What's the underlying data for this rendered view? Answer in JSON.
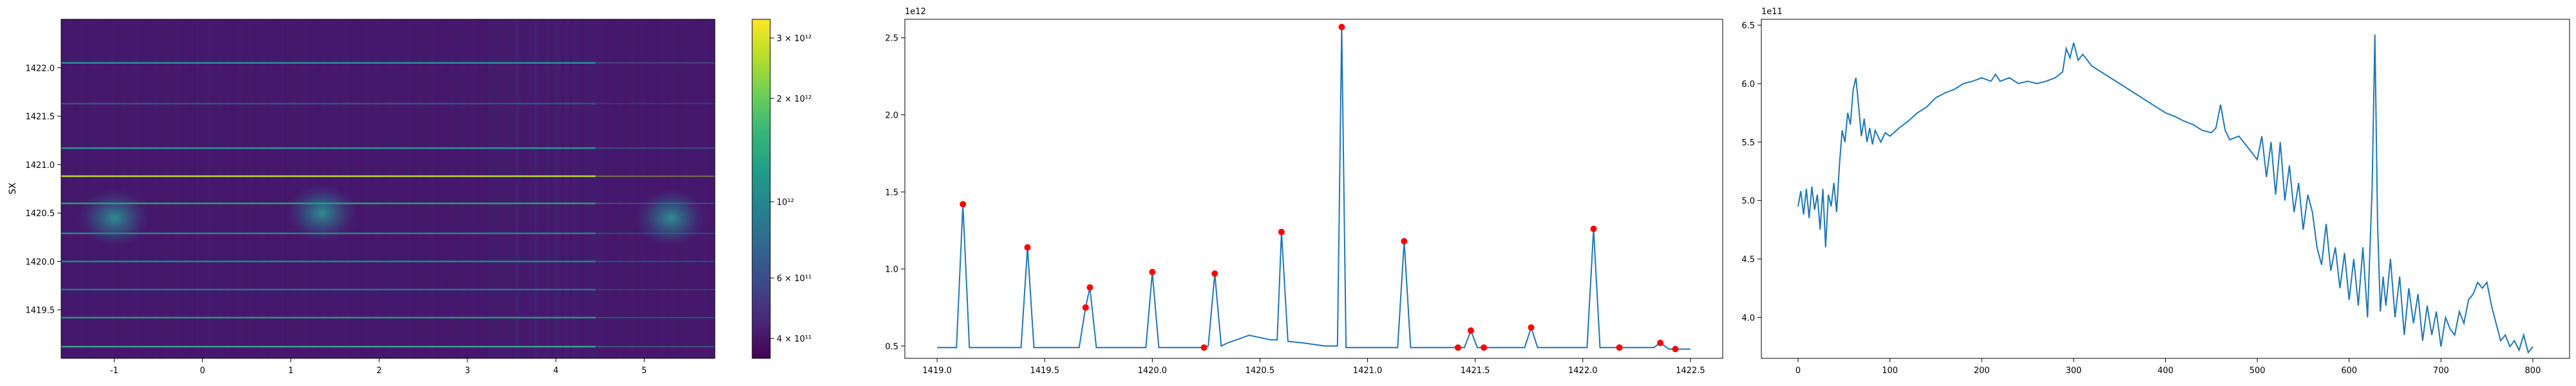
{
  "chart_data": [
    {
      "type": "heatmap",
      "ylabel": "SX",
      "xlim": [
        -1.6,
        5.8
      ],
      "ylim": [
        1419.0,
        1422.5
      ],
      "xticks": [
        "-1",
        "0",
        "1",
        "2",
        "3",
        "4",
        "5"
      ],
      "xtick_values": [
        -1,
        0,
        1,
        2,
        3,
        4,
        5
      ],
      "yticks": [
        "1419.5",
        "1420.0",
        "1420.5",
        "1421.0",
        "1421.5",
        "1422.0"
      ],
      "ytick_values": [
        1419.5,
        1420.0,
        1420.5,
        1421.0,
        1421.5,
        1422.0
      ],
      "colorbar": {
        "scale": "log",
        "range": [
          350000000000.0,
          3400000000000.0
        ],
        "ticks": [
          {
            "label": "4 × 10¹¹",
            "value": 400000000000.0
          },
          {
            "label": "6 × 10¹¹",
            "value": 600000000000.0
          },
          {
            "label": "10¹²",
            "value": 1000000000000.0
          },
          {
            "label": "2 × 10¹²",
            "value": 2000000000000.0
          },
          {
            "label": "3 × 10¹²",
            "value": 3000000000000.0
          }
        ],
        "colormap": [
          "#440154",
          "#482878",
          "#3e4989",
          "#31688e",
          "#26828e",
          "#1f9e89",
          "#35b779",
          "#6ece58",
          "#b5de2b",
          "#fde725"
        ]
      },
      "bright_rows": [
        {
          "y": 1422.05,
          "value": 1150000000000.0
        },
        {
          "y": 1421.63,
          "value": 600000000000.0
        },
        {
          "y": 1421.17,
          "value": 1200000000000.0
        },
        {
          "y": 1420.88,
          "value": 2600000000000.0
        },
        {
          "y": 1420.6,
          "value": 1250000000000.0
        },
        {
          "y": 1420.29,
          "value": 950000000000.0
        },
        {
          "y": 1420.0,
          "value": 980000000000.0
        },
        {
          "y": 1419.71,
          "value": 800000000000.0
        },
        {
          "y": 1419.42,
          "value": 1150000000000.0
        },
        {
          "y": 1419.12,
          "value": 1400000000000.0
        }
      ],
      "blobs": [
        {
          "x": -1.0,
          "y": 1420.45,
          "value": 1100000000000.0
        },
        {
          "x": 1.35,
          "y": 1420.5,
          "value": 1000000000000.0
        },
        {
          "x": 5.3,
          "y": 1420.45,
          "value": 1300000000000.0
        }
      ]
    },
    {
      "type": "line",
      "offset_label": "1e12",
      "xlim": [
        1418.85,
        1422.65
      ],
      "ylim": [
        0.42,
        2.62
      ],
      "xticks": [
        "1419.0",
        "1419.5",
        "1420.0",
        "1420.5",
        "1421.0",
        "1421.5",
        "1422.0",
        "1422.5"
      ],
      "xtick_values": [
        1419.0,
        1419.5,
        1420.0,
        1420.5,
        1421.0,
        1421.5,
        1422.0,
        1422.5
      ],
      "yticks": [
        "0.5",
        "1.0",
        "1.5",
        "2.0",
        "2.5"
      ],
      "ytick_values": [
        0.5,
        1.0,
        1.5,
        2.0,
        2.5
      ],
      "line_color": "#1f77b4",
      "marker_color": "#ff0000",
      "x": [
        1419.0,
        1419.09,
        1419.12,
        1419.15,
        1419.39,
        1419.42,
        1419.45,
        1419.66,
        1419.69,
        1419.71,
        1419.74,
        1419.97,
        1420.0,
        1420.03,
        1420.24,
        1420.26,
        1420.29,
        1420.32,
        1420.35,
        1420.45,
        1420.55,
        1420.58,
        1420.6,
        1420.63,
        1420.7,
        1420.8,
        1420.86,
        1420.88,
        1420.9,
        1421.0,
        1421.14,
        1421.17,
        1421.2,
        1421.42,
        1421.45,
        1421.48,
        1421.51,
        1421.54,
        1421.73,
        1421.76,
        1421.79,
        1421.9,
        1422.02,
        1422.05,
        1422.08,
        1422.2,
        1422.33,
        1422.36,
        1422.4,
        1422.5
      ],
      "y": [
        0.49,
        0.49,
        1.42,
        0.49,
        0.49,
        1.14,
        0.49,
        0.49,
        0.75,
        0.88,
        0.49,
        0.49,
        0.98,
        0.49,
        0.49,
        0.5,
        0.97,
        0.5,
        0.52,
        0.57,
        0.54,
        0.54,
        1.24,
        0.53,
        0.52,
        0.5,
        0.5,
        2.57,
        0.49,
        0.49,
        0.49,
        1.18,
        0.49,
        0.49,
        0.49,
        0.6,
        0.49,
        0.49,
        0.49,
        0.62,
        0.49,
        0.49,
        0.49,
        1.26,
        0.49,
        0.49,
        0.49,
        0.52,
        0.48,
        0.48
      ],
      "peaks_x": [
        1419.12,
        1419.42,
        1419.69,
        1419.71,
        1420.0,
        1420.24,
        1420.29,
        1420.6,
        1420.88,
        1421.17,
        1421.42,
        1421.48,
        1421.54,
        1421.76,
        1422.05,
        1422.17,
        1422.36,
        1422.43
      ],
      "peaks_y": [
        1.42,
        1.14,
        0.75,
        0.88,
        0.98,
        0.49,
        0.97,
        1.24,
        2.57,
        1.18,
        0.49,
        0.6,
        0.49,
        0.62,
        1.26,
        0.49,
        0.52,
        0.48
      ]
    },
    {
      "type": "line",
      "offset_label": "1e11",
      "xlim": [
        -40,
        840
      ],
      "ylim": [
        3.65,
        6.55
      ],
      "xticks": [
        "0",
        "100",
        "200",
        "300",
        "400",
        "500",
        "600",
        "700",
        "800"
      ],
      "xtick_values": [
        0,
        100,
        200,
        300,
        400,
        500,
        600,
        700,
        800
      ],
      "yticks": [
        "4.0",
        "4.5",
        "5.0",
        "5.5",
        "6.0",
        "6.5"
      ],
      "ytick_values": [
        4.0,
        4.5,
        5.0,
        5.5,
        6.0,
        6.5
      ],
      "line_color": "#1f77b4",
      "x": [
        0,
        3,
        6,
        9,
        12,
        15,
        18,
        21,
        24,
        27,
        30,
        33,
        36,
        39,
        42,
        45,
        48,
        51,
        54,
        57,
        60,
        63,
        66,
        69,
        72,
        75,
        78,
        81,
        84,
        87,
        90,
        95,
        100,
        110,
        120,
        130,
        140,
        150,
        160,
        170,
        180,
        190,
        200,
        210,
        215,
        220,
        230,
        240,
        250,
        260,
        270,
        280,
        288,
        292,
        296,
        300,
        305,
        310,
        320,
        330,
        340,
        350,
        360,
        370,
        380,
        390,
        400,
        410,
        420,
        430,
        440,
        450,
        455,
        460,
        465,
        470,
        480,
        490,
        500,
        505,
        510,
        515,
        520,
        525,
        530,
        535,
        540,
        545,
        550,
        555,
        560,
        565,
        570,
        575,
        580,
        585,
        590,
        595,
        600,
        605,
        610,
        615,
        620,
        625,
        628,
        631,
        634,
        637,
        640,
        645,
        650,
        655,
        660,
        665,
        670,
        675,
        680,
        685,
        690,
        695,
        700,
        705,
        710,
        715,
        720,
        725,
        730,
        735,
        740,
        745,
        750,
        755,
        760,
        765,
        770,
        775,
        780,
        785,
        790,
        795,
        800
      ],
      "y": [
        4.95,
        5.08,
        4.88,
        5.1,
        4.85,
        5.12,
        4.92,
        5.05,
        4.75,
        5.1,
        4.6,
        5.05,
        4.95,
        5.15,
        4.9,
        5.3,
        5.6,
        5.5,
        5.75,
        5.65,
        5.95,
        6.05,
        5.8,
        5.55,
        5.7,
        5.5,
        5.62,
        5.48,
        5.6,
        5.55,
        5.5,
        5.58,
        5.55,
        5.62,
        5.68,
        5.75,
        5.8,
        5.88,
        5.92,
        5.95,
        6.0,
        6.02,
        6.05,
        6.02,
        6.08,
        6.02,
        6.05,
        6.0,
        6.02,
        6.0,
        6.02,
        6.05,
        6.1,
        6.3,
        6.22,
        6.35,
        6.2,
        6.25,
        6.15,
        6.1,
        6.05,
        6.0,
        5.95,
        5.9,
        5.85,
        5.8,
        5.75,
        5.72,
        5.68,
        5.65,
        5.6,
        5.58,
        5.62,
        5.82,
        5.6,
        5.52,
        5.55,
        5.45,
        5.35,
        5.55,
        5.2,
        5.5,
        5.05,
        5.5,
        5.0,
        5.3,
        4.9,
        5.15,
        4.75,
        5.05,
        4.9,
        4.6,
        4.45,
        4.8,
        4.4,
        4.6,
        4.25,
        4.55,
        4.15,
        4.5,
        4.1,
        4.6,
        4.0,
        5.1,
        6.42,
        4.8,
        4.05,
        4.35,
        4.1,
        4.5,
        4.0,
        4.35,
        3.85,
        4.25,
        3.95,
        4.2,
        3.8,
        4.1,
        3.85,
        4.05,
        3.75,
        4.0,
        3.9,
        3.85,
        4.05,
        3.95,
        4.15,
        4.2,
        4.3,
        4.25,
        4.3,
        4.1,
        3.95,
        3.8,
        3.85,
        3.75,
        3.8,
        3.72,
        3.85,
        3.7,
        3.75
      ]
    }
  ]
}
